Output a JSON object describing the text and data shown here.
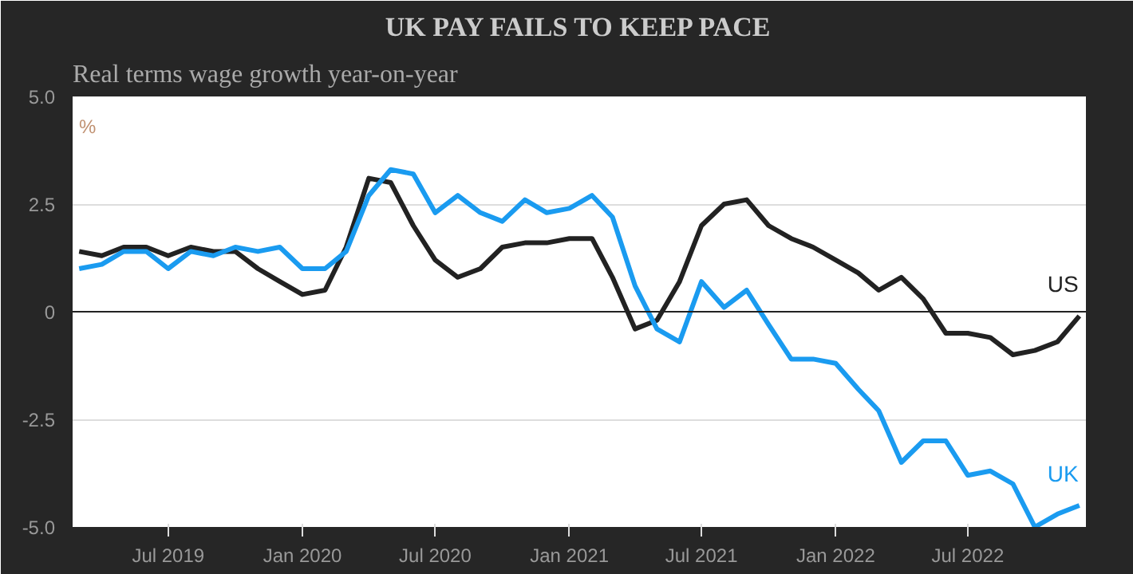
{
  "chart_data": {
    "type": "line",
    "title": "UK PAY FAILS TO KEEP PACE",
    "subtitle": "Real terms wage growth year-on-year",
    "ylabel": "%",
    "x": [
      "2019-03",
      "2019-04",
      "2019-05",
      "2019-06",
      "2019-07",
      "2019-08",
      "2019-09",
      "2019-10",
      "2019-11",
      "2019-12",
      "2020-01",
      "2020-02",
      "2020-03",
      "2020-04",
      "2020-05",
      "2020-06",
      "2020-07",
      "2020-08",
      "2020-09",
      "2020-10",
      "2020-11",
      "2020-12",
      "2021-01",
      "2021-02",
      "2021-03",
      "2021-04",
      "2021-05",
      "2021-06",
      "2021-07",
      "2021-08",
      "2021-09",
      "2021-10",
      "2021-11",
      "2021-12",
      "2022-01",
      "2022-02",
      "2022-03",
      "2022-04",
      "2022-05",
      "2022-06",
      "2022-07",
      "2022-08",
      "2022-09",
      "2022-10",
      "2022-11",
      "2022-12"
    ],
    "series": [
      {
        "name": "US",
        "color": "#222222",
        "values": [
          1.4,
          1.3,
          1.5,
          1.5,
          1.3,
          1.5,
          1.4,
          1.4,
          1.0,
          0.7,
          0.4,
          0.5,
          1.5,
          3.1,
          3.0,
          2.0,
          1.2,
          0.8,
          1.0,
          1.5,
          1.6,
          1.6,
          1.7,
          1.7,
          0.8,
          -0.4,
          -0.2,
          0.7,
          2.0,
          2.5,
          2.6,
          2.0,
          1.7,
          1.5,
          1.2,
          0.9,
          0.5,
          0.8,
          0.3,
          -0.5,
          -0.5,
          -0.6,
          -1.0,
          -0.9,
          -0.7,
          -0.1
        ]
      },
      {
        "name": "UK",
        "color": "#1a9bf0",
        "values": [
          1.0,
          1.1,
          1.4,
          1.4,
          1.0,
          1.4,
          1.3,
          1.5,
          1.4,
          1.5,
          1.0,
          1.0,
          1.4,
          2.7,
          3.3,
          3.2,
          2.3,
          2.7,
          2.3,
          2.1,
          2.6,
          2.3,
          2.4,
          2.7,
          2.2,
          0.6,
          -0.4,
          -0.7,
          0.7,
          0.1,
          0.5,
          -0.3,
          -1.1,
          -1.1,
          -1.2,
          -1.8,
          -2.3,
          -3.5,
          -3.0,
          -3.0,
          -3.8,
          -3.7,
          -4.0,
          -5.0,
          -4.7,
          -4.5
        ]
      }
    ],
    "xlim": [
      "2019-02-20",
      "2022-12-10"
    ],
    "xticks": [
      {
        "value": "2019-07",
        "label": "Jul 2019"
      },
      {
        "value": "2020-01",
        "label": "Jan 2020"
      },
      {
        "value": "2020-07",
        "label": "Jul 2020"
      },
      {
        "value": "2021-01",
        "label": "Jan 2021"
      },
      {
        "value": "2021-07",
        "label": "Jul 2021"
      },
      {
        "value": "2022-01",
        "label": "Jan 2022"
      },
      {
        "value": "2022-07",
        "label": "Jul 2022"
      }
    ],
    "ylim": [
      -5,
      5
    ],
    "yticks": [
      {
        "value": 5,
        "label": "5.0"
      },
      {
        "value": 2.5,
        "label": "2.5"
      },
      0,
      {
        "value": -2.5,
        "label": "-2.5"
      },
      {
        "value": -5,
        "label": "-5.0"
      }
    ],
    "ref_lines": [
      {
        "axis": "y",
        "value": 0,
        "color": "#222222"
      }
    ],
    "grid": "y",
    "marker": "none",
    "line_style": "solid"
  }
}
